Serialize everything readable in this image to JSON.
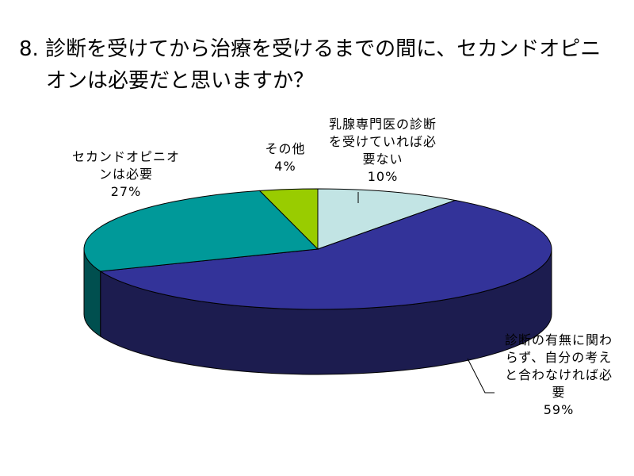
{
  "title": {
    "line1": "8. 診断を受けてから治療を受けるまでの間に、セカンドオピニ",
    "line2": "オンは必要だと思いますか？"
  },
  "chart_data": {
    "type": "pie",
    "title": "8. 診断を受けてから治療を受けるまでの間に、セカンドオピニオンは必要だと思いますか？",
    "three_d": true,
    "slices": [
      {
        "label": "乳腺専門医の診断を受けていれば必要ない",
        "value": 10,
        "value_label": "10%",
        "color": "#c2e4e4",
        "side_color": "#7fa6a6"
      },
      {
        "label": "診断の有無に関わらず、自分の考えと合わなければ必要",
        "value": 59,
        "value_label": "59%",
        "color": "#333399",
        "side_color": "#1c1c4f"
      },
      {
        "label": "セカンドオピニオンは必要",
        "value": 27,
        "value_label": "27%",
        "color": "#009999",
        "side_color": "#004f4f"
      },
      {
        "label": "その他",
        "value": 4,
        "value_label": "4%",
        "color": "#99cc00",
        "side_color": "#5a7800"
      }
    ],
    "legend": "none",
    "start_angle": "12 o'clock",
    "direction": "clockwise"
  }
}
